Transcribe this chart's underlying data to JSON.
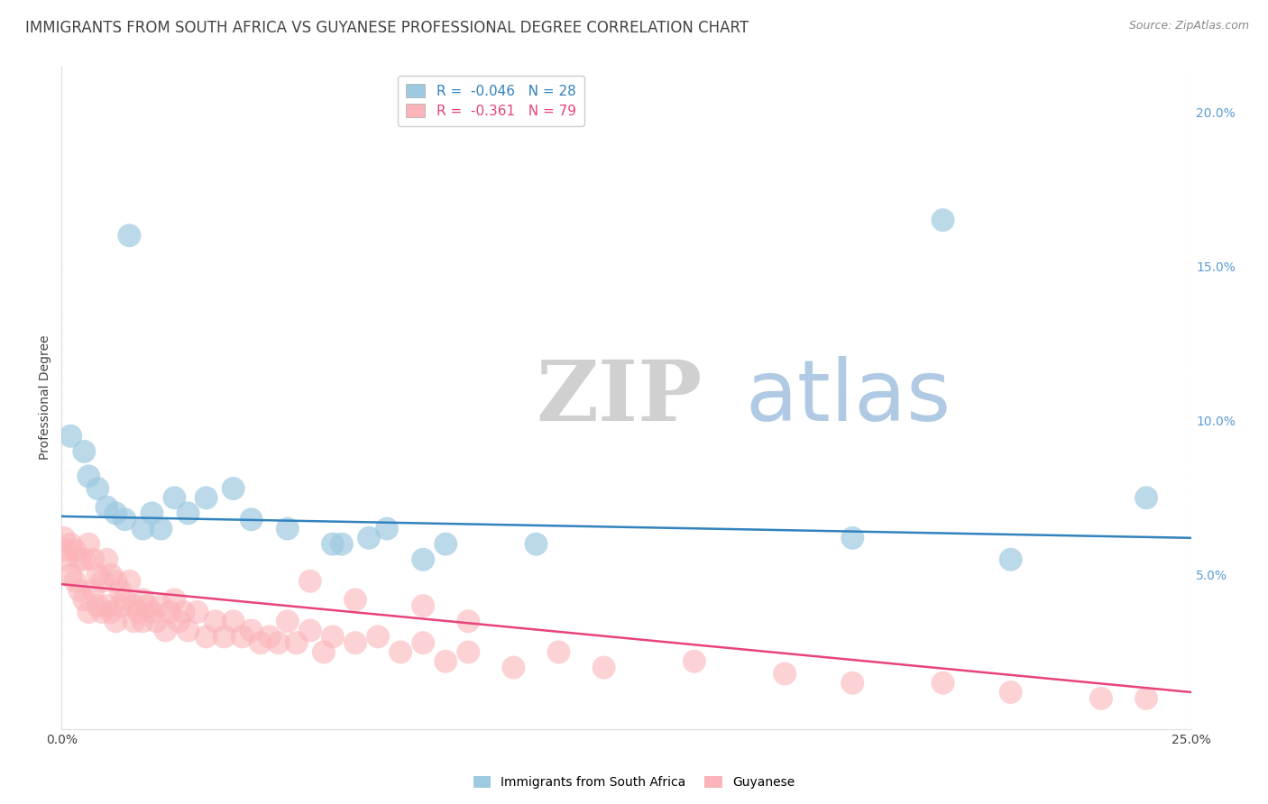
{
  "title": "IMMIGRANTS FROM SOUTH AFRICA VS GUYANESE PROFESSIONAL DEGREE CORRELATION CHART",
  "source": "Source: ZipAtlas.com",
  "ylabel": "Professional Degree",
  "watermark_zip": "ZIP",
  "watermark_atlas": "atlas",
  "legend": {
    "blue_R": -0.046,
    "blue_N": 28,
    "pink_R": -0.361,
    "pink_N": 79
  },
  "blue_color": "#9ecae1",
  "pink_color": "#fbb4b9",
  "blue_line_color": "#3182bd",
  "pink_line_color": "#e8437a",
  "background_color": "#ffffff",
  "grid_color": "#c8c8c8",
  "xlim": [
    0.0,
    0.25
  ],
  "ylim": [
    0.0,
    0.215
  ],
  "right_yticks": [
    0.05,
    0.1,
    0.15,
    0.2
  ],
  "right_yticklabels": [
    "5.0%",
    "10.0%",
    "15.0%",
    "20.0%"
  ],
  "blue_scatter_x": [
    0.002,
    0.005,
    0.006,
    0.008,
    0.01,
    0.012,
    0.014,
    0.015,
    0.018,
    0.02,
    0.022,
    0.025,
    0.028,
    0.032,
    0.038,
    0.042,
    0.05,
    0.06,
    0.062,
    0.068,
    0.072,
    0.08,
    0.085,
    0.105,
    0.175,
    0.195,
    0.21,
    0.24
  ],
  "blue_scatter_y": [
    0.095,
    0.09,
    0.082,
    0.078,
    0.072,
    0.07,
    0.068,
    0.16,
    0.065,
    0.07,
    0.065,
    0.075,
    0.07,
    0.075,
    0.078,
    0.068,
    0.065,
    0.06,
    0.06,
    0.062,
    0.065,
    0.055,
    0.06,
    0.06,
    0.062,
    0.165,
    0.055,
    0.075
  ],
  "pink_scatter_x": [
    0.0005,
    0.001,
    0.001,
    0.002,
    0.002,
    0.003,
    0.003,
    0.004,
    0.004,
    0.005,
    0.005,
    0.006,
    0.006,
    0.007,
    0.007,
    0.008,
    0.008,
    0.009,
    0.009,
    0.01,
    0.01,
    0.011,
    0.011,
    0.012,
    0.012,
    0.013,
    0.013,
    0.014,
    0.015,
    0.016,
    0.016,
    0.017,
    0.018,
    0.018,
    0.019,
    0.02,
    0.021,
    0.022,
    0.023,
    0.024,
    0.025,
    0.026,
    0.027,
    0.028,
    0.03,
    0.032,
    0.034,
    0.036,
    0.038,
    0.04,
    0.042,
    0.044,
    0.046,
    0.048,
    0.05,
    0.052,
    0.055,
    0.058,
    0.06,
    0.065,
    0.07,
    0.075,
    0.08,
    0.085,
    0.09,
    0.1,
    0.11,
    0.12,
    0.14,
    0.16,
    0.175,
    0.195,
    0.21,
    0.23,
    0.24,
    0.055,
    0.065,
    0.08,
    0.09
  ],
  "pink_scatter_y": [
    0.062,
    0.058,
    0.055,
    0.06,
    0.05,
    0.058,
    0.048,
    0.055,
    0.045,
    0.055,
    0.042,
    0.06,
    0.038,
    0.055,
    0.045,
    0.05,
    0.04,
    0.048,
    0.038,
    0.055,
    0.04,
    0.05,
    0.038,
    0.048,
    0.035,
    0.045,
    0.04,
    0.042,
    0.048,
    0.04,
    0.035,
    0.038,
    0.042,
    0.035,
    0.04,
    0.038,
    0.035,
    0.04,
    0.032,
    0.038,
    0.042,
    0.035,
    0.038,
    0.032,
    0.038,
    0.03,
    0.035,
    0.03,
    0.035,
    0.03,
    0.032,
    0.028,
    0.03,
    0.028,
    0.035,
    0.028,
    0.032,
    0.025,
    0.03,
    0.028,
    0.03,
    0.025,
    0.028,
    0.022,
    0.025,
    0.02,
    0.025,
    0.02,
    0.022,
    0.018,
    0.015,
    0.015,
    0.012,
    0.01,
    0.01,
    0.048,
    0.042,
    0.04,
    0.035
  ],
  "legend_label_blue": "Immigrants from South Africa",
  "legend_label_pink": "Guyanese",
  "title_color": "#444444",
  "source_color": "#888888",
  "title_fontsize": 12,
  "axis_fontsize": 10,
  "legend_fontsize": 11,
  "right_tick_color": "#5b9bd5"
}
